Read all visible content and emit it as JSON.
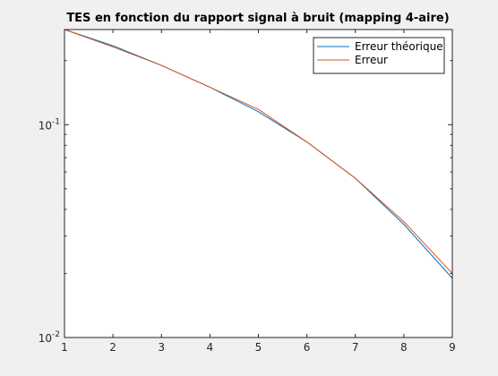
{
  "chart_data": {
    "type": "line",
    "title": "TES en fonction du rapport signal à bruit (mapping 4-aire)",
    "xlabel": "",
    "ylabel": "",
    "xlim": [
      1,
      9
    ],
    "ylim": [
      0.01,
      0.28
    ],
    "yscale": "log",
    "grid": false,
    "legend_position": "top-right",
    "x_ticks": [
      "1",
      "2",
      "3",
      "4",
      "5",
      "6",
      "7",
      "8",
      "9"
    ],
    "y_ticks": [
      {
        "value": 0.01,
        "base": "10",
        "exp": "-2"
      },
      {
        "value": 0.1,
        "base": "10",
        "exp": "-1"
      }
    ],
    "x": [
      1,
      2,
      3,
      4,
      5,
      6,
      7,
      8,
      9
    ],
    "series": [
      {
        "name": "Erreur théorique",
        "color": "#0072bd",
        "values": [
          0.28,
          0.235,
          0.19,
          0.15,
          0.115,
          0.083,
          0.056,
          0.034,
          0.019
        ]
      },
      {
        "name": "Erreur",
        "color": "#d95319",
        "values": [
          0.28,
          0.232,
          0.19,
          0.15,
          0.118,
          0.083,
          0.056,
          0.035,
          0.02
        ]
      }
    ]
  }
}
